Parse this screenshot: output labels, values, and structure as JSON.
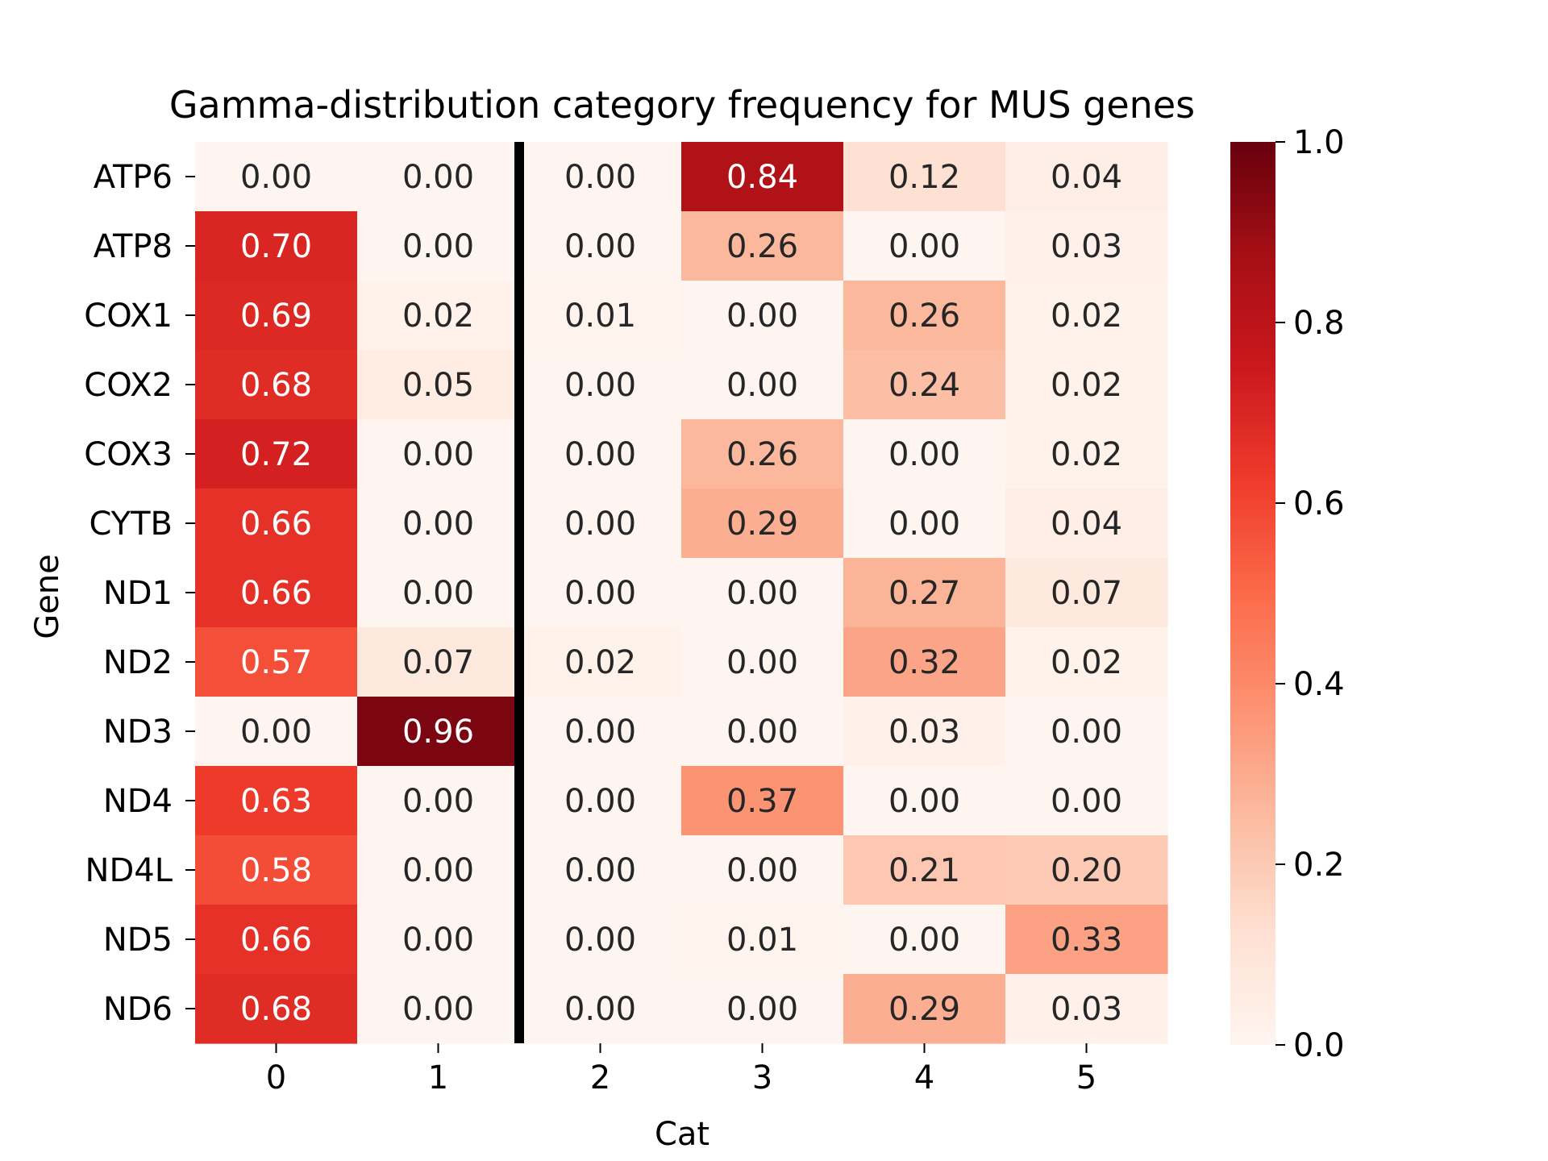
{
  "chart_data": {
    "type": "heatmap",
    "title": "Gamma-distribution category frequency for MUS genes",
    "xlabel": "Cat",
    "ylabel": "Gene",
    "x_categories": [
      "0",
      "1",
      "2",
      "3",
      "4",
      "5"
    ],
    "y_categories": [
      "ATP6",
      "ATP8",
      "COX1",
      "COX2",
      "COX3",
      "CYTB",
      "ND1",
      "ND2",
      "ND3",
      "ND4",
      "ND4L",
      "ND5",
      "ND6"
    ],
    "values": [
      [
        0.0,
        0.0,
        0.0,
        0.84,
        0.12,
        0.04
      ],
      [
        0.7,
        0.0,
        0.0,
        0.26,
        0.0,
        0.03
      ],
      [
        0.69,
        0.02,
        0.01,
        0.0,
        0.26,
        0.02
      ],
      [
        0.68,
        0.05,
        0.0,
        0.0,
        0.24,
        0.02
      ],
      [
        0.72,
        0.0,
        0.0,
        0.26,
        0.0,
        0.02
      ],
      [
        0.66,
        0.0,
        0.0,
        0.29,
        0.0,
        0.04
      ],
      [
        0.66,
        0.0,
        0.0,
        0.0,
        0.27,
        0.07
      ],
      [
        0.57,
        0.07,
        0.02,
        0.0,
        0.32,
        0.02
      ],
      [
        0.0,
        0.96,
        0.0,
        0.0,
        0.03,
        0.0
      ],
      [
        0.63,
        0.0,
        0.0,
        0.37,
        0.0,
        0.0
      ],
      [
        0.58,
        0.0,
        0.0,
        0.0,
        0.21,
        0.2
      ],
      [
        0.66,
        0.0,
        0.0,
        0.01,
        0.0,
        0.33
      ],
      [
        0.68,
        0.0,
        0.0,
        0.0,
        0.29,
        0.03
      ]
    ],
    "value_format": "0.00",
    "colormap": "Reds",
    "colorbar": {
      "range": [
        0.0,
        1.0
      ],
      "ticks": [
        "0.0",
        "0.2",
        "0.4",
        "0.6",
        "0.8",
        "1.0"
      ]
    },
    "divider_after_column": "1",
    "divider_color": "#000000"
  }
}
